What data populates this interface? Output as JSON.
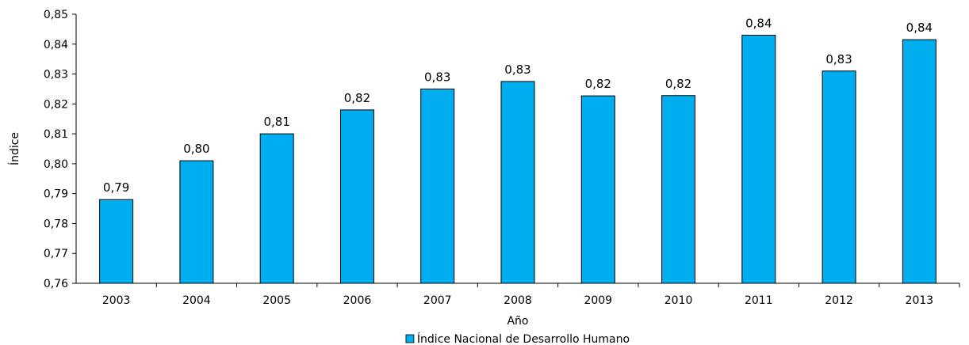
{
  "chart_data": {
    "type": "bar",
    "title": "",
    "xlabel": "Año",
    "ylabel": "Índice",
    "categories": [
      "2003",
      "2004",
      "2005",
      "2006",
      "2007",
      "2008",
      "2009",
      "2010",
      "2011",
      "2012",
      "2013"
    ],
    "series": [
      {
        "name": "Índice Nacional de Desarrollo Humano",
        "values": [
          0.788,
          0.801,
          0.81,
          0.818,
          0.825,
          0.8275,
          0.8227,
          0.8228,
          0.843,
          0.831,
          0.8415
        ],
        "labels": [
          "0,79",
          "0,80",
          "0,81",
          "0,82",
          "0,83",
          "0,83",
          "0,82",
          "0,82",
          "0,84",
          "0,83",
          "0,84"
        ],
        "color": "#00aeef"
      }
    ],
    "ylim": [
      0.76,
      0.85
    ],
    "yticks": [
      0.76,
      0.77,
      0.78,
      0.79,
      0.8,
      0.81,
      0.82,
      0.83,
      0.84,
      0.85
    ],
    "ytick_labels": [
      "0,76",
      "0,77",
      "0,78",
      "0,79",
      "0,80",
      "0,81",
      "0,82",
      "0,83",
      "0,84",
      "0,85"
    ],
    "grid": false,
    "legend_position": "bottom"
  }
}
